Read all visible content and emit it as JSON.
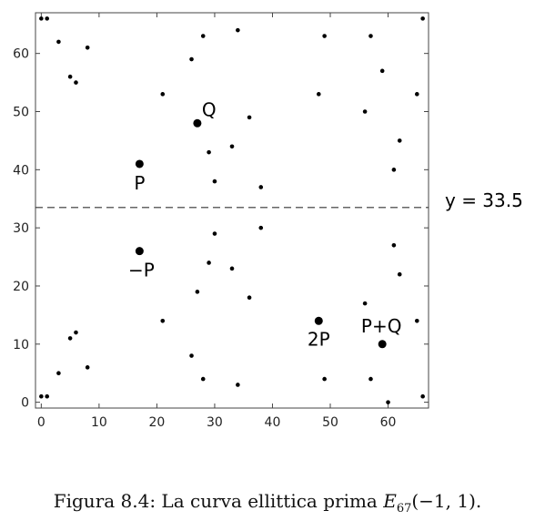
{
  "chart_data": {
    "type": "scatter",
    "title": "",
    "xlabel": "",
    "ylabel": "",
    "xlim": [
      -1,
      67
    ],
    "ylim": [
      -1,
      67
    ],
    "xticks": [
      0,
      10,
      20,
      30,
      40,
      50,
      60
    ],
    "yticks": [
      0,
      10,
      20,
      30,
      40,
      50,
      60
    ],
    "grid": false,
    "series": [
      {
        "points": [
          [
            0,
            1
          ],
          [
            0,
            66
          ],
          [
            1,
            1
          ],
          [
            1,
            66
          ],
          [
            3,
            5
          ],
          [
            3,
            62
          ],
          [
            5,
            11
          ],
          [
            5,
            56
          ],
          [
            6,
            12
          ],
          [
            6,
            55
          ],
          [
            8,
            6
          ],
          [
            8,
            61
          ],
          [
            21,
            14
          ],
          [
            21,
            53
          ],
          [
            26,
            8
          ],
          [
            26,
            59
          ],
          [
            27,
            19
          ],
          [
            27,
            48
          ],
          [
            28,
            4
          ],
          [
            28,
            63
          ],
          [
            29,
            24
          ],
          [
            29,
            43
          ],
          [
            30,
            29
          ],
          [
            30,
            38
          ],
          [
            33,
            23
          ],
          [
            33,
            44
          ],
          [
            34,
            3
          ],
          [
            34,
            64
          ],
          [
            36,
            18
          ],
          [
            36,
            49
          ],
          [
            38,
            30
          ],
          [
            38,
            37
          ],
          [
            48,
            14
          ],
          [
            48,
            53
          ],
          [
            49,
            4
          ],
          [
            49,
            63
          ],
          [
            56,
            17
          ],
          [
            56,
            50
          ],
          [
            57,
            4
          ],
          [
            57,
            63
          ],
          [
            59,
            10
          ],
          [
            59,
            57
          ],
          [
            60,
            0
          ],
          [
            61,
            27
          ],
          [
            61,
            40
          ],
          [
            62,
            22
          ],
          [
            62,
            45
          ],
          [
            65,
            14
          ],
          [
            65,
            53
          ],
          [
            66,
            1
          ],
          [
            66,
            66
          ],
          [
            17,
            41
          ],
          [
            17,
            26
          ]
        ]
      }
    ],
    "highlighted_points": [
      {
        "label": "Q",
        "x": 27,
        "y": 48
      },
      {
        "label": "P",
        "x": 17,
        "y": 41
      },
      {
        "label": "−P",
        "x": 17,
        "y": 26
      },
      {
        "label": "2P",
        "x": 48,
        "y": 14
      },
      {
        "label": "P+Q",
        "x": 59,
        "y": 10
      }
    ],
    "reference_line": {
      "y": 33.5,
      "label": "y = 33.5",
      "style": "dashed"
    }
  },
  "caption": {
    "prefix": "Figura 8.4: La curva ellittica prima ",
    "symbol": "E",
    "subscript": "67",
    "args": "(−1, 1)."
  }
}
